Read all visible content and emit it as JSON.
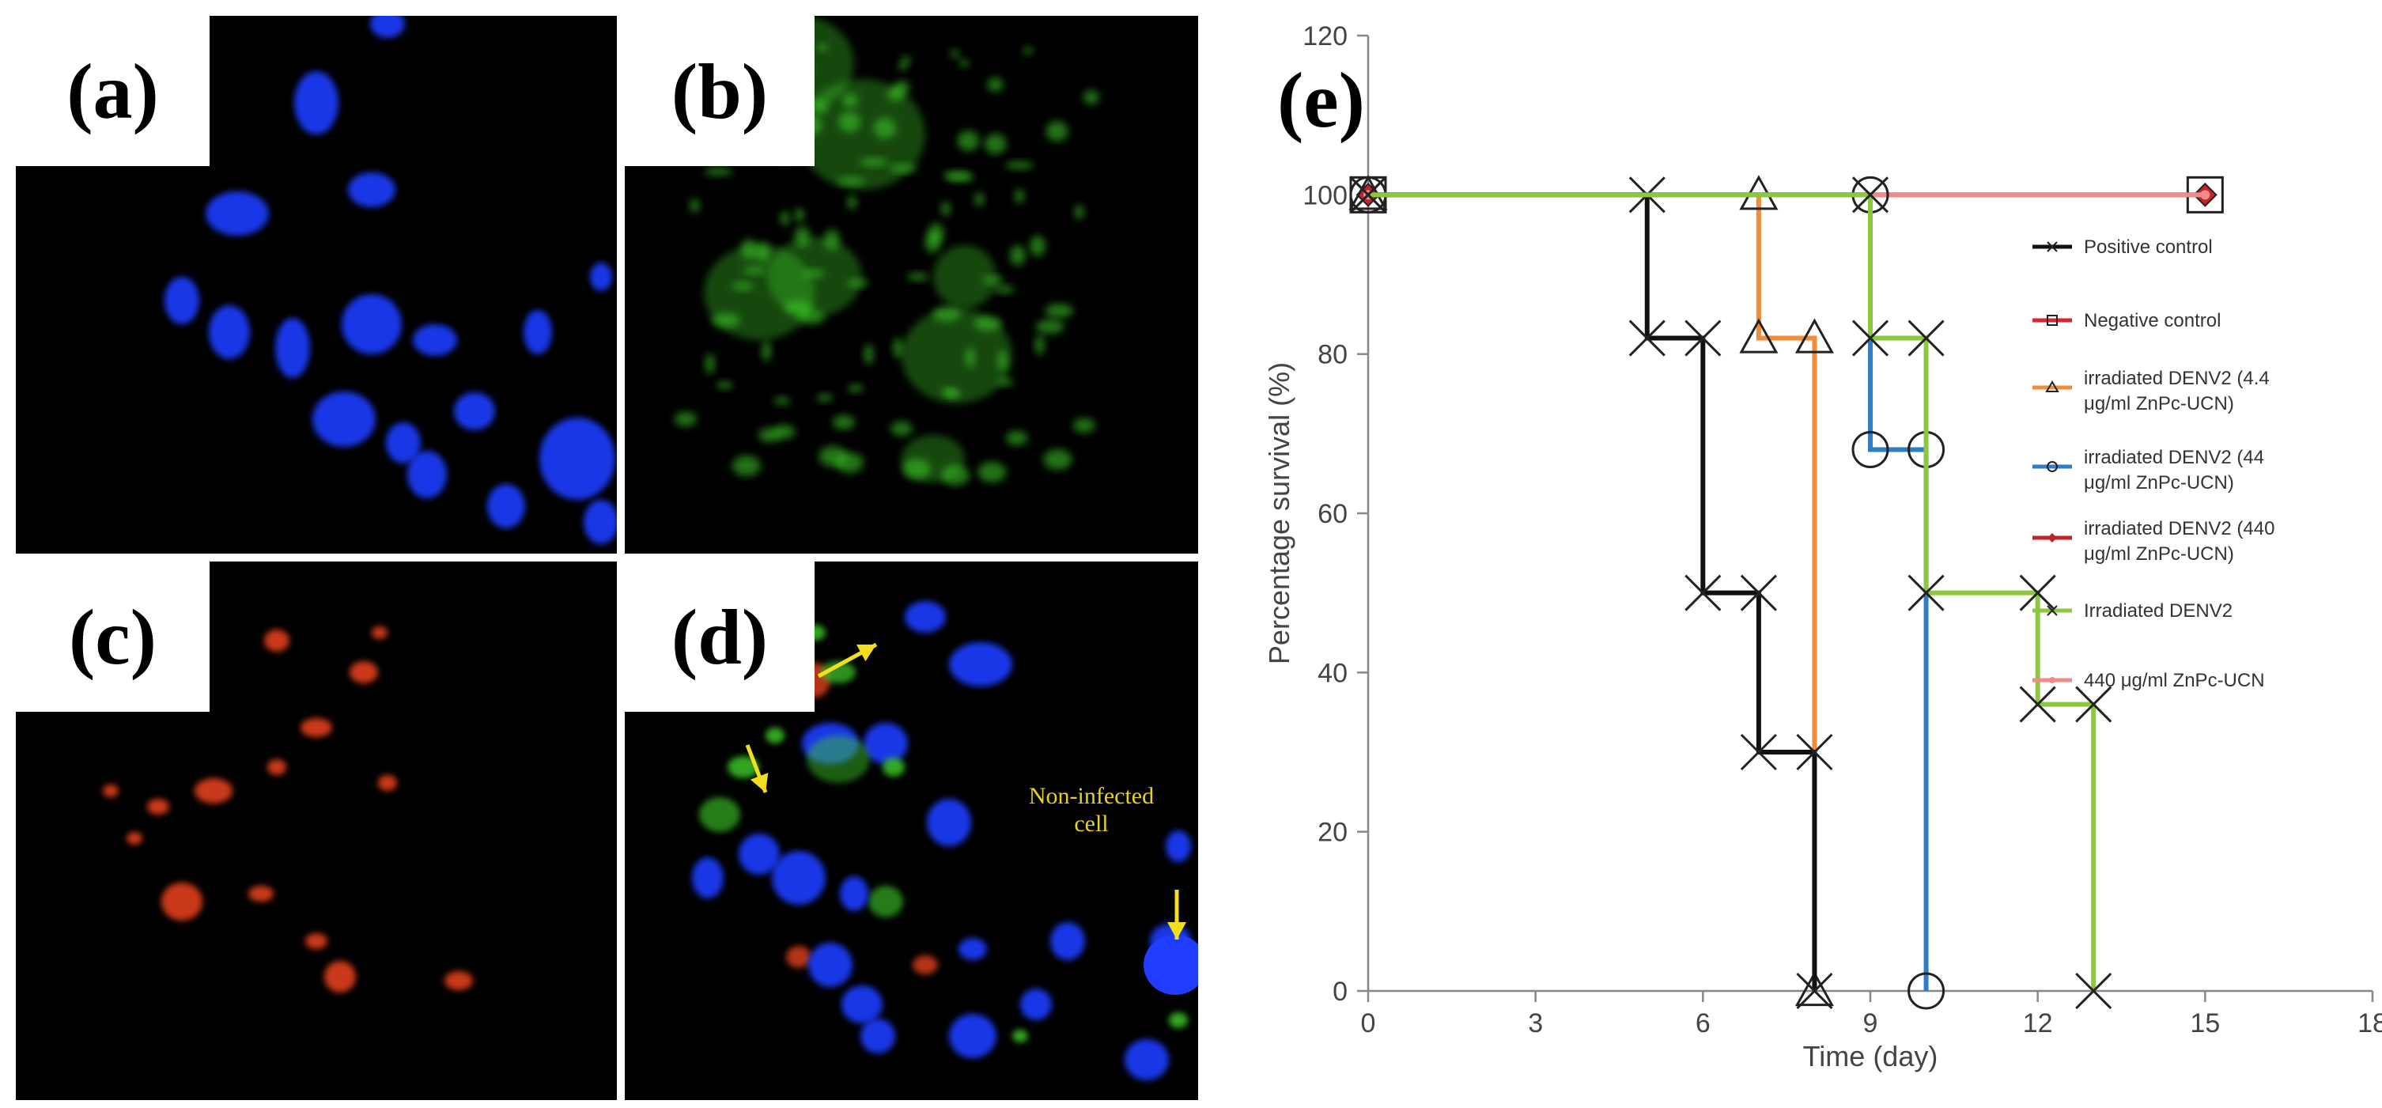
{
  "panels": {
    "a": {
      "label": "(a)"
    },
    "b": {
      "label": "(b)"
    },
    "c": {
      "label": "(c)"
    },
    "d": {
      "label": "(d)",
      "annotation_line1": "Non-infected",
      "annotation_line2": "cell"
    },
    "e": {
      "label": "(e)"
    }
  },
  "colors": {
    "positive": "#111111",
    "negative": "#d9242b",
    "d44": "#f28c38",
    "d44b": "#2f7dc6",
    "d440": "#c0252a",
    "irr": "#8dc63f",
    "only440": "#ef8b8b",
    "nuclei": "#1f3cff",
    "virus_green": "#3fcf2a",
    "virus_red": "#e0401c",
    "arrow": "#f2de1f"
  },
  "chart_data": {
    "type": "line",
    "step": true,
    "xlabel": "Time (day)",
    "ylabel": "Percentage survival (%)",
    "xlim": [
      0,
      18
    ],
    "ylim": [
      0,
      120
    ],
    "xticks": [
      "0",
      "3",
      "6",
      "9",
      "12",
      "15",
      "18"
    ],
    "yticks": [
      "0",
      "20",
      "40",
      "60",
      "80",
      "100",
      "120"
    ],
    "legend_position": "right",
    "series": [
      {
        "name": "Positive control",
        "marker": "x",
        "points": [
          [
            0,
            100
          ],
          [
            5,
            100
          ],
          [
            5,
            82
          ],
          [
            6,
            82
          ],
          [
            6,
            50
          ],
          [
            7,
            50
          ],
          [
            7,
            30
          ],
          [
            8,
            30
          ],
          [
            8,
            0
          ]
        ]
      },
      {
        "name": "Negative control",
        "marker": "square",
        "points": [
          [
            0,
            100
          ],
          [
            15,
            100
          ]
        ]
      },
      {
        "name": "irradiated DENV2 (4.4 μg/ml ZnPc-UCN)",
        "legend_line1": "irradiated DENV2 (4.4",
        "legend_line2": "μg/ml ZnPc-UCN)",
        "marker": "triangle",
        "points": [
          [
            0,
            100
          ],
          [
            7,
            100
          ],
          [
            7,
            82
          ],
          [
            8,
            82
          ],
          [
            8,
            0
          ]
        ]
      },
      {
        "name": "irradiated DENV2 (44 μg/ml ZnPc-UCN)",
        "legend_line1": "irradiated DENV2 (44",
        "legend_line2": "μg/ml ZnPc-UCN)",
        "marker": "circle",
        "points": [
          [
            0,
            100
          ],
          [
            9,
            100
          ],
          [
            9,
            68
          ],
          [
            10,
            68
          ],
          [
            10,
            0
          ]
        ]
      },
      {
        "name": "irradiated DENV2 (440 μg/ml ZnPc-UCN)",
        "legend_line1": "irradiated DENV2 (440",
        "legend_line2": "μg/ml ZnPc-UCN)",
        "marker": "diamond",
        "points": [
          [
            0,
            100
          ],
          [
            15,
            100
          ]
        ]
      },
      {
        "name": "Irradiated DENV2",
        "marker": "x",
        "points": [
          [
            0,
            100
          ],
          [
            9,
            100
          ],
          [
            9,
            82
          ],
          [
            10,
            82
          ],
          [
            10,
            50
          ],
          [
            12,
            50
          ],
          [
            12,
            36
          ],
          [
            13,
            36
          ],
          [
            13,
            0
          ]
        ]
      },
      {
        "name": "440 μg/ml ZnPc-UCN",
        "marker": "dot",
        "points": [
          [
            0,
            100
          ],
          [
            15,
            100
          ]
        ]
      }
    ]
  }
}
